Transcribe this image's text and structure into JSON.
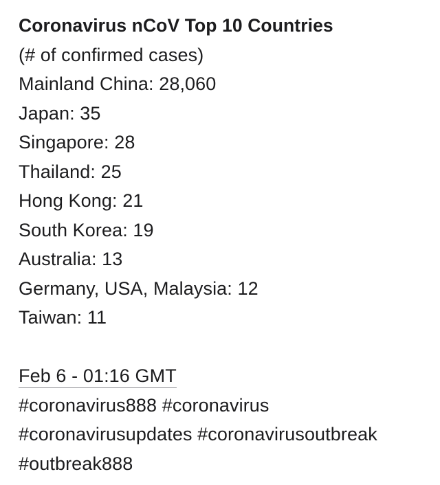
{
  "post": {
    "title": "Coronavirus nCoV Top 10 Countries",
    "subtitle": "(# of confirmed cases)",
    "countries": [
      "Mainland China: 28,060",
      "Japan: 35",
      "Singapore: 28",
      "Thailand: 25",
      "Hong Kong: 21",
      "South Korea: 19",
      "Australia: 13",
      "Germany, USA, Malaysia: 12",
      "Taiwan: 11"
    ],
    "timestamp": "Feb 6 - 01:16 GMT",
    "hashtags": [
      "#coronavirus888 #coronavirus",
      "#coronavirusupdates #coronavirusoutbreak",
      "#outbreak888"
    ]
  }
}
